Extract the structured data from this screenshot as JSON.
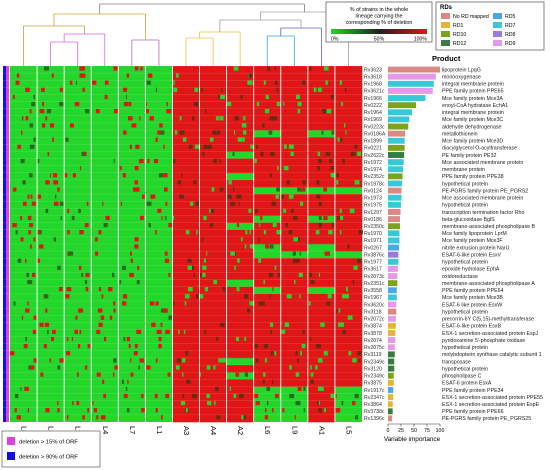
{
  "colors": {
    "green": "#22d62a",
    "red": "#e01515",
    "pink_marker": "#e040e0",
    "blue_marker": "#1010e0",
    "heat_cmap": [
      "#22d62a",
      "#202020",
      "#e01515"
    ]
  },
  "color_key": {
    "title": "% of strains in the whole lineage carrying the corresponding % of deletion",
    "ticks": [
      "0%",
      "50%",
      "100%"
    ]
  },
  "rd_legend": {
    "title": "RDs",
    "items": [
      {
        "label": "No RD mapped",
        "color": "#d98a84"
      },
      {
        "label": "RD5",
        "color": "#4aa8e6"
      },
      {
        "label": "RD1",
        "color": "#e6b531"
      },
      {
        "label": "RD7",
        "color": "#38c8d8"
      },
      {
        "label": "RD10",
        "color": "#7aa41c"
      },
      {
        "label": "RD8",
        "color": "#9a7ae0"
      },
      {
        "label": "RD12",
        "color": "#3a7a44"
      },
      {
        "label": "RD9",
        "color": "#e898e8"
      }
    ]
  },
  "product_header": "Product",
  "deletion_legend": [
    {
      "label": "deletion > 15% of ORF",
      "color": "#e040e0"
    },
    {
      "label": "deletion > 90% of ORF",
      "color": "#1010e0"
    }
  ],
  "chart_data": {
    "type": "heatmap",
    "columns": [
      "L8",
      "L3",
      "L2",
      "L4",
      "L7",
      "L1",
      "A3",
      "A4",
      "A2",
      "L6",
      "L9",
      "A1",
      "L5"
    ],
    "genes": [
      {
        "id": "Rv3623",
        "product": "lipoprotein LpqG",
        "importance": 100,
        "rd": "No RD mapped",
        "red_cols": [
          "A3",
          "A4",
          "A2",
          "L6",
          "L9",
          "A1",
          "L5"
        ]
      },
      {
        "id": "Rv3618",
        "product": "monooxygenase",
        "importance": 92,
        "rd": "RD9",
        "red_cols": [
          "A3",
          "A4",
          "A2",
          "L6",
          "L9",
          "A1",
          "L5"
        ]
      },
      {
        "id": "Rv1968",
        "product": "integral membrane protein",
        "importance": 88,
        "rd": "RD7",
        "red_cols": [
          "A3",
          "A4",
          "A2",
          "L6",
          "L9",
          "A1",
          "L5"
        ]
      },
      {
        "id": "Rv3621c",
        "product": "PPE family protein PPE65",
        "importance": 86,
        "rd": "RD9",
        "red_cols": [
          "A3",
          "A4",
          "A2",
          "L6",
          "L9",
          "A1",
          "L5"
        ]
      },
      {
        "id": "Rv1966",
        "product": "Mce family protein Mce3A",
        "importance": 72,
        "rd": "RD7",
        "red_cols": [
          "A3",
          "A4",
          "A2",
          "L6",
          "L9",
          "A1",
          "L5"
        ]
      },
      {
        "id": "Rv0222",
        "product": "enoyl-CoA hydratase EchA1",
        "importance": 54,
        "rd": "RD10",
        "red_cols": [
          "A3",
          "A4",
          "A2",
          "L6",
          "L9",
          "A1",
          "L5"
        ]
      },
      {
        "id": "Rv1964",
        "product": "integral membrane protein",
        "importance": 46,
        "rd": "RD7",
        "red_cols": [
          "A3",
          "A4",
          "A2",
          "L6",
          "L9",
          "A1",
          "L5"
        ]
      },
      {
        "id": "Rv1969",
        "product": "Mce family protein Mce3C",
        "importance": 41,
        "rd": "RD7",
        "red_cols": [
          "A3",
          "A4",
          "A2",
          "L6",
          "L9",
          "A1",
          "L5"
        ]
      },
      {
        "id": "Rv0223c",
        "product": "aldehyde dehydrogenase",
        "importance": 39,
        "rd": "RD10",
        "red_cols": [
          "A3",
          "A4",
          "A2",
          "L6",
          "L9",
          "A1",
          "L5"
        ]
      },
      {
        "id": "Rv0186A",
        "product": "metallothionein",
        "importance": 33,
        "rd": "No RD mapped",
        "red_cols": [
          "A3",
          "A4",
          "A2",
          "L9",
          "L5"
        ]
      },
      {
        "id": "Rv1899",
        "product": "Mce family protein Mce3D",
        "importance": 32,
        "rd": "RD7",
        "red_cols": [
          "A3",
          "A4",
          "A2",
          "L6",
          "L9",
          "A1",
          "L5"
        ]
      },
      {
        "id": "Rv0221",
        "product": "diacylglycerol O-acyltransferase",
        "importance": 32,
        "rd": "RD10",
        "red_cols": [
          "A3",
          "A4",
          "A2",
          "L6",
          "L9",
          "A1",
          "L5"
        ]
      },
      {
        "id": "Rv2622c",
        "product": "PE family protein PE32",
        "importance": 31,
        "rd": "RD12",
        "red_cols": [
          "A3",
          "A4",
          "L6",
          "L9",
          "A1",
          "L5"
        ]
      },
      {
        "id": "Rv1972",
        "product": "Mce associated membrane protein",
        "importance": 30,
        "rd": "RD7",
        "red_cols": [
          "A3",
          "A4",
          "A2",
          "L6",
          "L9",
          "A1",
          "L5"
        ]
      },
      {
        "id": "Rv1974",
        "product": "membrane protein",
        "importance": 29,
        "rd": "RD7",
        "red_cols": [
          "A3",
          "A4",
          "A2",
          "L6",
          "L9",
          "A1",
          "L5"
        ]
      },
      {
        "id": "Rv2352c",
        "product": "PPE family protein PPE38",
        "importance": 28,
        "rd": "RD10",
        "red_cols": [
          "A3",
          "A4",
          "L6",
          "L9",
          "A1",
          "L5"
        ]
      },
      {
        "id": "Rv1978c",
        "product": "hypothetical protein",
        "importance": 27,
        "rd": "RD7",
        "red_cols": [
          "A3",
          "A4",
          "A2",
          "L6",
          "L9",
          "A1",
          "L5"
        ]
      },
      {
        "id": "Rv0124",
        "product": "PE-PGRS family protein PE_PGRS2",
        "importance": 26,
        "rd": "No RD mapped",
        "red_cols": [
          "A3",
          "A4",
          "A2"
        ]
      },
      {
        "id": "Rv1973",
        "product": "Mce associated membrane protein",
        "importance": 26,
        "rd": "RD7",
        "red_cols": [
          "A3",
          "A4",
          "A2",
          "L6",
          "L9",
          "A1",
          "L5"
        ]
      },
      {
        "id": "Rv1975",
        "product": "hypothetical protein",
        "importance": 25,
        "rd": "RD7",
        "red_cols": [
          "A3",
          "A4",
          "A2",
          "L6",
          "L9",
          "A1",
          "L5"
        ]
      },
      {
        "id": "Rv1297",
        "product": "transcription termination factor Rho",
        "importance": 24,
        "rd": "No RD mapped",
        "red_cols": [
          "A3",
          "A4",
          "A2",
          "L6",
          "L9",
          "A1",
          "L5"
        ]
      },
      {
        "id": "Rv0186",
        "product": "beta-glucosidase BglS",
        "importance": 23,
        "rd": "No RD mapped",
        "red_cols": [
          "A3",
          "A4",
          "A2",
          "L9",
          "L5"
        ]
      },
      {
        "id": "Rv2350c",
        "product": "membrane-associated phospholipase B",
        "importance": 23,
        "rd": "RD10",
        "red_cols": [
          "A3",
          "A4",
          "L6",
          "L9",
          "A1",
          "L5"
        ]
      },
      {
        "id": "Rv1970",
        "product": "Mce family lipoprotein LprM",
        "importance": 22,
        "rd": "RD7",
        "red_cols": [
          "A3",
          "A4",
          "A2",
          "L6",
          "L9",
          "A1",
          "L5"
        ]
      },
      {
        "id": "Rv1971",
        "product": "Mce family protein Mce3F",
        "importance": 22,
        "rd": "RD7",
        "red_cols": [
          "A3",
          "A4",
          "A2",
          "L6",
          "L9",
          "A1",
          "L5"
        ]
      },
      {
        "id": "Rv0267",
        "product": "nitrite extrusion protein NarU",
        "importance": 21,
        "rd": "RD5",
        "red_cols": [
          "A3",
          "A4",
          "A2",
          "L9",
          "L5"
        ]
      },
      {
        "id": "Rv3876c",
        "product": "ESAT-6-like protein EsxV",
        "importance": 20,
        "rd": "RD8",
        "red_cols": [
          "A3",
          "A4",
          "A2"
        ]
      },
      {
        "id": "Rv1977",
        "product": "hypothetical protein",
        "importance": 20,
        "rd": "RD7",
        "red_cols": [
          "A3",
          "A4",
          "A2",
          "L6",
          "L9",
          "A1",
          "L5"
        ]
      },
      {
        "id": "Rv3617",
        "product": "epoxide hydrolase EphA",
        "importance": 19,
        "rd": "RD9",
        "red_cols": [
          "A3",
          "A4",
          "A2",
          "L6",
          "L9",
          "A1",
          "L5"
        ]
      },
      {
        "id": "Rv2073c",
        "product": "oxidoreductase",
        "importance": 18,
        "rd": "RD9",
        "red_cols": [
          "A3",
          "A4",
          "A2",
          "L6",
          "L9",
          "A1",
          "L5"
        ]
      },
      {
        "id": "Rv2351c",
        "product": "membrane-associated phospholipase A",
        "importance": 18,
        "rd": "RD10",
        "red_cols": [
          "A3",
          "A4",
          "L6",
          "L9",
          "A1",
          "L5"
        ]
      },
      {
        "id": "Rv3558",
        "product": "PPE family protein PPE64",
        "importance": 17,
        "rd": "RD5",
        "red_cols": [
          "A3",
          "A4",
          "A2",
          "L9",
          "L5"
        ]
      },
      {
        "id": "Rv1967",
        "product": "Mce family protein Mce3B",
        "importance": 17,
        "rd": "RD7",
        "red_cols": [
          "A3",
          "A4",
          "A2",
          "L6",
          "L9",
          "A1",
          "L5"
        ]
      },
      {
        "id": "Rv3620c",
        "product": "ESAT-6 like protein EsxW",
        "importance": 16,
        "rd": "RD9",
        "red_cols": [
          "A3",
          "A4",
          "A2",
          "L6",
          "L9",
          "A1",
          "L5"
        ]
      },
      {
        "id": "Rv3118",
        "product": "hypothetical protein",
        "importance": 16,
        "rd": "No RD mapped",
        "red_cols": [
          "A3",
          "A4",
          "A2",
          "L6",
          "L9",
          "A1",
          "L5"
        ]
      },
      {
        "id": "Rv2072c",
        "product": "precorrin-6Y C(5,15)-methyltransferase",
        "importance": 15,
        "rd": "RD9",
        "red_cols": [
          "A3",
          "A4",
          "A2",
          "L6",
          "L9",
          "A1",
          "L5"
        ]
      },
      {
        "id": "Rv3874",
        "product": "ESAT-6-like protein EsxB",
        "importance": 15,
        "rd": "RD1",
        "red_cols": [
          "A3",
          "A4",
          "A2",
          "L6",
          "L9",
          "A1",
          "L5"
        ]
      },
      {
        "id": "Rv3878",
        "product": "ESX-1 secretion-associated protein EspJ",
        "importance": 14,
        "rd": "RD1",
        "red_cols": [
          "A3",
          "A4",
          "A2",
          "L6",
          "L9",
          "A1",
          "L5"
        ]
      },
      {
        "id": "Rv2074",
        "product": "pyridoxamine 5'-phosphate oxidase",
        "importance": 14,
        "rd": "RD9",
        "red_cols": [
          "A3",
          "A4",
          "A2",
          "L6",
          "L9",
          "A1",
          "L5"
        ]
      },
      {
        "id": "Rv2075c",
        "product": "hypothetical protein",
        "importance": 13,
        "rd": "RD9",
        "red_cols": [
          "A3",
          "A4",
          "A2",
          "L6",
          "L9",
          "A1",
          "L5"
        ]
      },
      {
        "id": "Rv3119",
        "product": "molybdopterin synthase catalytic subunit 1",
        "importance": 13,
        "rd": "RD12",
        "red_cols": [
          "A3",
          "A4",
          "A2",
          "L6",
          "L9",
          "A1",
          "L5"
        ]
      },
      {
        "id": "Rv2349c",
        "product": "transposase",
        "importance": 12,
        "rd": "RD12",
        "red_cols": [
          "A3",
          "A4",
          "L6",
          "L9",
          "A1",
          "L5"
        ]
      },
      {
        "id": "Rv3120",
        "product": "hypothetical protein",
        "importance": 12,
        "rd": "RD12",
        "red_cols": [
          "A3",
          "A4",
          "A2",
          "L6",
          "L9",
          "A1",
          "L5"
        ]
      },
      {
        "id": "Rv2349c",
        "product": "phospholipase C",
        "importance": 11,
        "rd": "RD10",
        "red_cols": [
          "A3",
          "A4",
          "L6",
          "L9",
          "A1",
          "L5"
        ]
      },
      {
        "id": "Rv3875",
        "product": "ESAT-6 protein EsxA",
        "importance": 11,
        "rd": "RD1",
        "red_cols": [
          "A3",
          "A4",
          "A2",
          "L6",
          "L9",
          "A1",
          "L5"
        ]
      },
      {
        "id": "Rv1917c",
        "product": "PPE family protein PPE34",
        "importance": 10,
        "rd": "RD5",
        "red_cols": [
          "A3",
          "A4",
          "A2",
          "A1"
        ]
      },
      {
        "id": "Rv2347c",
        "product": "ESX-1 secretion-associated protein PPE55",
        "importance": 10,
        "rd": "RD1",
        "red_cols": [
          "A3",
          "A4",
          "A2",
          "A1"
        ]
      },
      {
        "id": "Rv3864",
        "product": "ESX-1 secretion-associated protein EspE",
        "importance": 9,
        "rd": "RD1",
        "red_cols": [
          "A3",
          "A4",
          "A2",
          "A1"
        ]
      },
      {
        "id": "Rv3738c",
        "product": "PPE family protein PPE66",
        "importance": 9,
        "rd": "RD12",
        "red_cols": [
          "A3",
          "A4",
          "A2",
          "A1"
        ]
      },
      {
        "id": "Rv1396c",
        "product": "PE-PGRS family protein PE_PGRS25",
        "importance": 8,
        "rd": "No RD mapped",
        "red_cols": [
          "A3",
          "A4",
          "A2",
          "A1"
        ]
      }
    ],
    "xlabel": "Variable importance",
    "x_ticks": [
      0,
      25,
      50,
      75,
      100
    ],
    "xlim": [
      0,
      100
    ]
  }
}
